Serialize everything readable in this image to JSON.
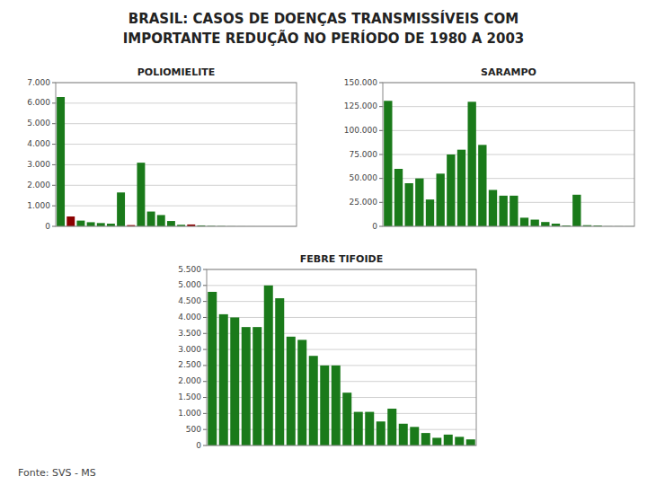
{
  "title": "BRASIL: CASOS DE DOENÇAS TRANSMISSÍVEIS COM",
  "subtitle": "IMPORTANTE REDUÇÃO NO PERÍODO DE 1980 A 2003",
  "annotations": [
    "Fonte: SVS - MS"
  ],
  "chart_data": [
    {
      "type": "bar",
      "title": "POLIOMIELITE",
      "categories": [
        null,
        null,
        null,
        null,
        null,
        null,
        null,
        null,
        null,
        null,
        null,
        null,
        null,
        null,
        null,
        null,
        null,
        null,
        null,
        null,
        null,
        null,
        null,
        null
      ],
      "values": [
        6300,
        480,
        280,
        200,
        160,
        130,
        1650,
        60,
        3100,
        720,
        550,
        260,
        75,
        90,
        45,
        22,
        14,
        6,
        3,
        2,
        1,
        0,
        0,
        0
      ],
      "colors": [
        "#1a7a1a",
        "#8B0000",
        "#1a7a1a",
        "#1a7a1a",
        "#1a7a1a",
        "#1a7a1a",
        "#1a7a1a",
        "#8B0000",
        "#1a7a1a",
        "#1a7a1a",
        "#1a7a1a",
        "#1a7a1a",
        "#1a7a1a",
        "#8B0000",
        "#1a7a1a",
        "#1a7a1a",
        "#1a7a1a",
        "#1a7a1a",
        "#1a7a1a",
        "#1a7a1a",
        "#1a7a1a",
        "#1a7a1a",
        "#1a7a1a",
        "#1a7a1a"
      ],
      "ylim": [
        0,
        7000
      ],
      "yticks": [
        0,
        {
          "value": 1000,
          "label": "1.000"
        },
        {
          "value": 2000,
          "label": "2.000"
        },
        {
          "value": 3000,
          "label": "3.000"
        },
        {
          "value": 4000,
          "label": "4.000"
        },
        {
          "value": 5000,
          "label": "5.000"
        },
        {
          "value": 6000,
          "label": "6.000"
        },
        {
          "value": 7000,
          "label": "7.000"
        }
      ],
      "grid": true,
      "tick_labels": "y"
    },
    {
      "type": "bar",
      "title": "SARAMPO",
      "categories": [
        null,
        null,
        null,
        null,
        null,
        null,
        null,
        null,
        null,
        null,
        null,
        null,
        null,
        null,
        null,
        null,
        null,
        null,
        null,
        null,
        null,
        null,
        null,
        null
      ],
      "values": [
        131000,
        60000,
        45000,
        50000,
        28000,
        55000,
        75000,
        80000,
        130000,
        85000,
        38000,
        32000,
        32000,
        9000,
        7000,
        4500,
        2800,
        900,
        33000,
        1200,
        900,
        150,
        130,
        80
      ],
      "color": "#1a7a1a",
      "ylim": [
        0,
        150000
      ],
      "yticks": [
        0,
        {
          "value": 25000,
          "label": "25.000"
        },
        {
          "value": 50000,
          "label": "50.000"
        },
        {
          "value": 75000,
          "label": "75.000"
        },
        {
          "value": 100000,
          "label": "100.000"
        },
        {
          "value": 125000,
          "label": "125.000"
        },
        {
          "value": 150000,
          "label": "150.000"
        }
      ],
      "grid": true,
      "tick_labels": "y"
    },
    {
      "type": "bar",
      "title": "FEBRE TIFOIDE",
      "categories": [
        null,
        null,
        null,
        null,
        null,
        null,
        null,
        null,
        null,
        null,
        null,
        null,
        null,
        null,
        null,
        null,
        null,
        null,
        null,
        null,
        null,
        null,
        null,
        null
      ],
      "values": [
        4800,
        4100,
        4000,
        3700,
        3700,
        5000,
        4600,
        3400,
        3300,
        2800,
        2500,
        2500,
        1650,
        1050,
        1050,
        750,
        1150,
        680,
        580,
        390,
        240,
        340,
        270,
        190
      ],
      "color": "#1a7a1a",
      "ylim": [
        0,
        5500
      ],
      "yticks": [
        0,
        500,
        {
          "value": 1000,
          "label": "1.000"
        },
        {
          "value": 1500,
          "label": "1.500"
        },
        {
          "value": 2000,
          "label": "2.000"
        },
        {
          "value": 2500,
          "label": "2.500"
        },
        {
          "value": 3000,
          "label": "3.000"
        },
        {
          "value": 3500,
          "label": "3.500"
        },
        {
          "value": 4000,
          "label": "4.000"
        },
        {
          "value": 4500,
          "label": "4.500"
        },
        {
          "value": 5000,
          "label": "5.000"
        },
        {
          "value": 5500,
          "label": "5.500"
        }
      ],
      "grid": true,
      "tick_labels": "y"
    }
  ]
}
